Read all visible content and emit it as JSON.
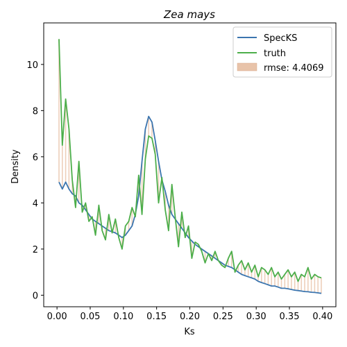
{
  "chart_data": {
    "type": "line",
    "title": "Zea mays",
    "xlabel": "Ks",
    "ylabel": "Density",
    "xlim": [
      -0.02,
      0.42
    ],
    "ylim": [
      -0.5,
      11.8
    ],
    "xticks": [
      "0.00",
      "0.05",
      "0.10",
      "0.15",
      "0.20",
      "0.25",
      "0.30",
      "0.35",
      "0.40"
    ],
    "yticks": [
      "0",
      "2",
      "4",
      "6",
      "8",
      "10"
    ],
    "legend_position": "top-right",
    "grid": false,
    "x": [
      0.003,
      0.008,
      0.013,
      0.018,
      0.023,
      0.028,
      0.033,
      0.038,
      0.043,
      0.048,
      0.053,
      0.058,
      0.063,
      0.068,
      0.073,
      0.078,
      0.083,
      0.088,
      0.093,
      0.098,
      0.103,
      0.108,
      0.113,
      0.118,
      0.123,
      0.128,
      0.133,
      0.138,
      0.143,
      0.148,
      0.153,
      0.158,
      0.163,
      0.168,
      0.173,
      0.178,
      0.183,
      0.188,
      0.193,
      0.198,
      0.203,
      0.208,
      0.213,
      0.218,
      0.223,
      0.228,
      0.233,
      0.238,
      0.243,
      0.248,
      0.253,
      0.258,
      0.263,
      0.268,
      0.273,
      0.278,
      0.283,
      0.288,
      0.293,
      0.298,
      0.303,
      0.308,
      0.313,
      0.318,
      0.323,
      0.328,
      0.333,
      0.338,
      0.343,
      0.348,
      0.353,
      0.358,
      0.363,
      0.368,
      0.373,
      0.378,
      0.383,
      0.388,
      0.393,
      0.398
    ],
    "series": [
      {
        "name": "SpecKS",
        "color": "#3b75af",
        "values": [
          4.9,
          4.6,
          4.9,
          4.6,
          4.4,
          4.3,
          4.0,
          3.9,
          3.7,
          3.5,
          3.3,
          3.2,
          3.1,
          3.0,
          2.9,
          2.8,
          2.75,
          2.7,
          2.6,
          2.5,
          2.6,
          2.8,
          3.0,
          3.5,
          4.3,
          5.8,
          7.2,
          7.75,
          7.5,
          6.7,
          5.8,
          5.0,
          4.5,
          3.9,
          3.5,
          3.3,
          3.1,
          2.9,
          2.7,
          2.5,
          2.35,
          2.2,
          2.1,
          2.0,
          1.9,
          1.8,
          1.7,
          1.6,
          1.5,
          1.4,
          1.3,
          1.25,
          1.2,
          1.1,
          1.0,
          0.9,
          0.85,
          0.8,
          0.75,
          0.7,
          0.6,
          0.55,
          0.5,
          0.45,
          0.4,
          0.4,
          0.35,
          0.3,
          0.3,
          0.28,
          0.25,
          0.22,
          0.2,
          0.18,
          0.16,
          0.15,
          0.13,
          0.12,
          0.1,
          0.08
        ]
      },
      {
        "name": "truth",
        "color": "#4cae4a",
        "values": [
          11.1,
          6.5,
          8.5,
          7.2,
          5.0,
          3.8,
          5.8,
          3.6,
          4.0,
          3.2,
          3.4,
          2.6,
          3.9,
          2.8,
          2.4,
          3.5,
          2.7,
          3.3,
          2.5,
          2.0,
          3.0,
          3.2,
          3.8,
          3.4,
          5.2,
          3.5,
          5.9,
          6.9,
          6.8,
          6.1,
          4.0,
          5.1,
          3.7,
          2.8,
          4.8,
          3.4,
          2.1,
          3.6,
          2.5,
          3.0,
          1.6,
          2.3,
          2.2,
          1.9,
          1.4,
          1.8,
          1.5,
          1.9,
          1.5,
          1.3,
          1.2,
          1.6,
          1.9,
          1.0,
          1.3,
          1.5,
          1.1,
          1.4,
          1.0,
          1.3,
          0.8,
          1.2,
          1.1,
          0.9,
          1.2,
          0.8,
          1.0,
          0.7,
          0.9,
          1.1,
          0.8,
          1.0,
          0.6,
          0.9,
          0.8,
          1.2,
          0.7,
          0.9,
          0.8,
          0.75
        ]
      }
    ],
    "fill": {
      "label": "rmse: 4.4069",
      "color": "#e8c3a9",
      "between": [
        "SpecKS",
        "truth"
      ]
    }
  }
}
